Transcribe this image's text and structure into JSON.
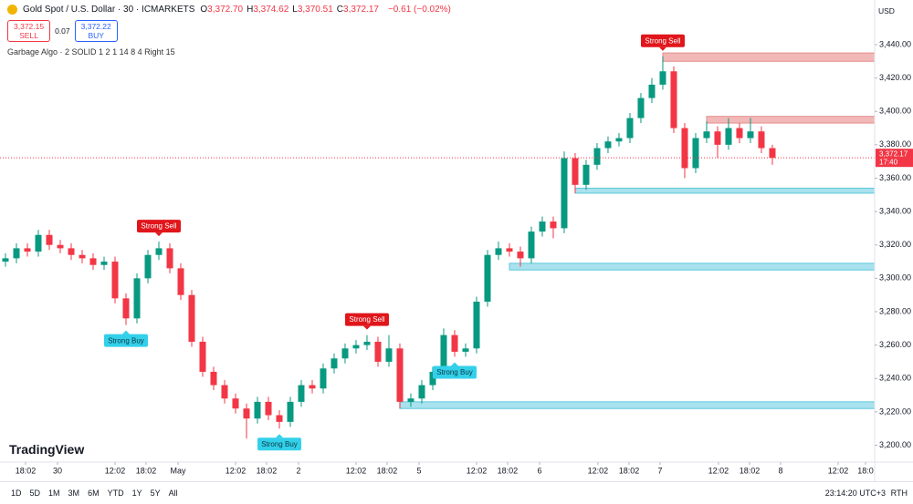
{
  "chart_data": {
    "type": "candlestick",
    "ylim": [
      3191,
      3464
    ],
    "yticks": [
      {
        "value": 3200,
        "label": "3,200.00"
      },
      {
        "value": 3220,
        "label": "3,220.00"
      },
      {
        "value": 3240,
        "label": "3,240.00"
      },
      {
        "value": 3260,
        "label": "3,260.00"
      },
      {
        "value": 3280,
        "label": "3,280.00"
      },
      {
        "value": 3300,
        "label": "3,300.00"
      },
      {
        "value": 3320,
        "label": "3,320.00"
      },
      {
        "value": 3340,
        "label": "3,340.00"
      },
      {
        "value": 3360,
        "label": "3,360.00"
      },
      {
        "value": 3380,
        "label": "3,380.00"
      },
      {
        "value": 3400,
        "label": "3,400.00"
      },
      {
        "value": 3420,
        "label": "3,420.00"
      },
      {
        "value": 3440,
        "label": "3,440.00"
      }
    ],
    "xlim": [
      -0.5,
      78.67
    ],
    "xticks": [
      {
        "value": 1.83,
        "label": "18:02"
      },
      {
        "value": 4.75,
        "label": "30"
      },
      {
        "value": 10,
        "label": "12:02"
      },
      {
        "value": 12.83,
        "label": "18:02"
      },
      {
        "value": 15.75,
        "label": "May"
      },
      {
        "value": 21,
        "label": "12:02"
      },
      {
        "value": 23.83,
        "label": "18:02"
      },
      {
        "value": 26.75,
        "label": "2"
      },
      {
        "value": 32,
        "label": "12:02"
      },
      {
        "value": 34.83,
        "label": "18:02"
      },
      {
        "value": 37.75,
        "label": "5"
      },
      {
        "value": 43,
        "label": "12:02"
      },
      {
        "value": 45.83,
        "label": "18:02"
      },
      {
        "value": 48.75,
        "label": "6"
      },
      {
        "value": 54.08,
        "label": "12:02"
      },
      {
        "value": 56.92,
        "label": "18:02"
      },
      {
        "value": 59.75,
        "label": "7"
      },
      {
        "value": 65.08,
        "label": "12:02"
      },
      {
        "value": 67.92,
        "label": "18:02"
      },
      {
        "value": 70.75,
        "label": "8"
      },
      {
        "value": 76,
        "label": "12:02"
      },
      {
        "value": 78.5,
        "label": "18:0"
      }
    ],
    "up_color": "#089981",
    "down_color": "#f23645",
    "ohlc": [
      [
        3310,
        3315,
        3307,
        3312
      ],
      [
        3312,
        3321,
        3309,
        3318
      ],
      [
        3318,
        3321,
        3313,
        3316
      ],
      [
        3316,
        3329,
        3313,
        3326
      ],
      [
        3326,
        3329,
        3317,
        3320
      ],
      [
        3320,
        3323,
        3315,
        3318
      ],
      [
        3318,
        3321,
        3311,
        3314
      ],
      [
        3314,
        3317,
        3309,
        3312
      ],
      [
        3312,
        3315,
        3305,
        3308
      ],
      [
        3308,
        3313,
        3305,
        3310
      ],
      [
        3310,
        3313,
        3285,
        3288
      ],
      [
        3288,
        3291,
        3272,
        3276
      ],
      [
        3276,
        3303,
        3273,
        3300
      ],
      [
        3300,
        3317,
        3297,
        3314
      ],
      [
        3314,
        3322,
        3311,
        3318
      ],
      [
        3318,
        3321,
        3303,
        3306
      ],
      [
        3306,
        3309,
        3287,
        3290
      ],
      [
        3290,
        3293,
        3259,
        3262
      ],
      [
        3262,
        3265,
        3241,
        3244
      ],
      [
        3244,
        3247,
        3233,
        3236
      ],
      [
        3236,
        3239,
        3225,
        3228
      ],
      [
        3228,
        3231,
        3219,
        3222
      ],
      [
        3222,
        3225,
        3204,
        3216
      ],
      [
        3216,
        3229,
        3213,
        3226
      ],
      [
        3226,
        3229,
        3215,
        3218
      ],
      [
        3218,
        3221,
        3210,
        3214
      ],
      [
        3214,
        3229,
        3211,
        3226
      ],
      [
        3226,
        3239,
        3223,
        3236
      ],
      [
        3236,
        3239,
        3231,
        3234
      ],
      [
        3234,
        3249,
        3231,
        3246
      ],
      [
        3246,
        3255,
        3243,
        3252
      ],
      [
        3252,
        3261,
        3249,
        3258
      ],
      [
        3258,
        3263,
        3255,
        3260
      ],
      [
        3260,
        3266,
        3257,
        3262
      ],
      [
        3262,
        3265,
        3247,
        3250
      ],
      [
        3250,
        3266,
        3247,
        3258
      ],
      [
        3258,
        3261,
        3222,
        3226
      ],
      [
        3226,
        3231,
        3223,
        3228
      ],
      [
        3228,
        3239,
        3225,
        3236
      ],
      [
        3236,
        3247,
        3233,
        3244
      ],
      [
        3244,
        3270,
        3241,
        3266
      ],
      [
        3266,
        3269,
        3253,
        3256
      ],
      [
        3256,
        3261,
        3253,
        3258
      ],
      [
        3258,
        3289,
        3255,
        3286
      ],
      [
        3286,
        3317,
        3283,
        3314
      ],
      [
        3314,
        3322,
        3311,
        3318
      ],
      [
        3318,
        3321,
        3313,
        3316
      ],
      [
        3316,
        3319,
        3307,
        3312
      ],
      [
        3312,
        3331,
        3309,
        3328
      ],
      [
        3328,
        3337,
        3325,
        3334
      ],
      [
        3334,
        3337,
        3324,
        3330
      ],
      [
        3330,
        3376,
        3327,
        3372
      ],
      [
        3372,
        3375,
        3351,
        3356
      ],
      [
        3356,
        3371,
        3353,
        3368
      ],
      [
        3368,
        3381,
        3365,
        3378
      ],
      [
        3378,
        3385,
        3375,
        3382
      ],
      [
        3382,
        3387,
        3379,
        3384
      ],
      [
        3384,
        3399,
        3381,
        3396
      ],
      [
        3396,
        3411,
        3393,
        3408
      ],
      [
        3408,
        3420,
        3405,
        3416
      ],
      [
        3416,
        3433,
        3413,
        3424
      ],
      [
        3424,
        3427,
        3387,
        3390
      ],
      [
        3390,
        3393,
        3360,
        3366
      ],
      [
        3366,
        3387,
        3363,
        3384
      ],
      [
        3384,
        3394,
        3381,
        3388
      ],
      [
        3388,
        3391,
        3372,
        3380
      ],
      [
        3380,
        3396,
        3377,
        3390
      ],
      [
        3390,
        3393,
        3381,
        3384
      ],
      [
        3384,
        3396,
        3381,
        3388
      ],
      [
        3388,
        3391,
        3375,
        3378
      ],
      [
        3378,
        3380,
        3368,
        3372.17
      ]
    ],
    "supply_color": "#f2b8b8",
    "demand_color": "#a9e2ee",
    "zones": [
      {
        "kind": "supply",
        "start": 60,
        "top": 3435,
        "bottom": 3430
      },
      {
        "kind": "supply",
        "start": 64,
        "top": 3397,
        "bottom": 3393
      },
      {
        "kind": "demand",
        "start": 52,
        "top": 3354,
        "bottom": 3351
      },
      {
        "kind": "demand",
        "start": 46,
        "top": 3309,
        "bottom": 3305
      },
      {
        "kind": "demand",
        "start": 36,
        "top": 3226,
        "bottom": 3222
      }
    ],
    "sell_color": "#e0161b",
    "buy_color": "#33d0ea",
    "signals": [
      {
        "label": "Strong Buy",
        "at": 11
      },
      {
        "label": "Strong Sell",
        "at": 14
      },
      {
        "label": "Strong Buy",
        "at": 25
      },
      {
        "label": "Strong Sell",
        "at": 33
      },
      {
        "label": "Strong Buy",
        "at": 41
      },
      {
        "label": "Strong Sell",
        "at": 60
      }
    ]
  },
  "header": {
    "symbol": "Gold Spot / U.S. Dollar · 30 · ICMARKETS",
    "quote": [
      {
        "key": "O",
        "value": "3,372.70"
      },
      {
        "key": "H",
        "value": "3,374.62"
      },
      {
        "key": "L",
        "value": "3,370.51"
      },
      {
        "key": "C",
        "value": "3,372.17"
      }
    ],
    "change": "−0.61 (−0.02%)"
  },
  "order": {
    "sell_price": "3,372.15",
    "sell": "SELL",
    "spread": "0.07",
    "buy_price": "3,372.22",
    "buy": "BUY"
  },
  "indicator": "Garbage Algo · 2 SOLID 1 2 1 14 8 4 Right 15",
  "currency": "USD",
  "price_tag": {
    "price": "3,372.17",
    "countdown": "17:40"
  },
  "logo": "TradingView",
  "toolbar": {
    "ranges": [
      "1D",
      "5D",
      "1M",
      "3M",
      "6M",
      "YTD",
      "1Y",
      "5Y",
      "All"
    ],
    "clock": "23:14:20 UTC+3",
    "session": "RTH"
  }
}
